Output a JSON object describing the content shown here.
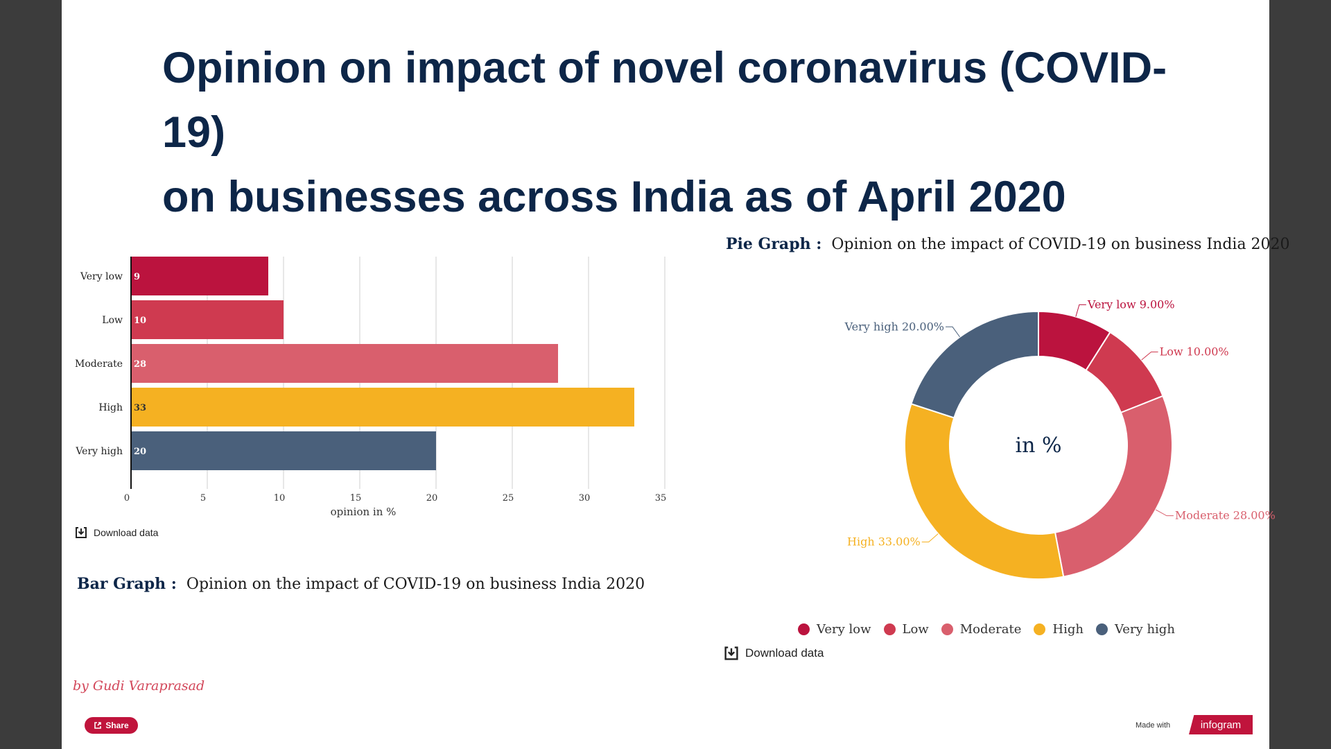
{
  "title": {
    "line1": "Opinion on impact of novel coronavirus (COVID-19)",
    "line2": "on businesses across India as of April 2020"
  },
  "bar_section": {
    "caption_bold": "Bar Graph :",
    "caption_text": "Opinion on the impact of COVID-19 on business India 2020",
    "download_label": "Download data"
  },
  "pie_section": {
    "caption_bold": "Pie Graph :",
    "caption_text": "Opinion on the impact of COVID-19 on business India 2020",
    "center_label": "in %",
    "download_label": "Download data"
  },
  "byline": "by Gudi Varaprasad",
  "footer": {
    "share_label": "Share",
    "made_with_label": "Made with",
    "brand_label": "infogram"
  },
  "colors": {
    "very_low": "#bb133e",
    "low": "#cf3a50",
    "moderate": "#d95f6d",
    "high": "#f5b122",
    "very_high": "#4a607b",
    "title": "#0d2648"
  },
  "chart_data": [
    {
      "type": "bar",
      "orientation": "horizontal",
      "categories": [
        "Very low",
        "Low",
        "Moderate",
        "High",
        "Very high"
      ],
      "values": [
        9,
        10,
        28,
        33,
        20
      ],
      "colors": [
        "#bb133e",
        "#cf3a50",
        "#d95f6d",
        "#f5b122",
        "#4a607b"
      ],
      "xlabel": "opinion in %",
      "ylabel": "",
      "xlim": [
        0,
        35
      ],
      "xticks": [
        0,
        5,
        10,
        15,
        20,
        25,
        30,
        35
      ],
      "grid": true,
      "data_labels": [
        "9",
        "10",
        "28",
        "33",
        "20"
      ]
    },
    {
      "type": "pie",
      "donut": true,
      "center_text": "in %",
      "labels": [
        "Very low",
        "Low",
        "Moderate",
        "High",
        "Very high"
      ],
      "values": [
        9,
        10,
        28,
        33,
        20
      ],
      "data_labels": [
        "Very low 9.00%",
        "Low 10.00%",
        "Moderate 28.00%",
        "High 33.00%",
        "Very high 20.00%"
      ],
      "colors": [
        "#bb133e",
        "#cf3a50",
        "#d95f6d",
        "#f5b122",
        "#4a607b"
      ],
      "legend": "bottom"
    }
  ]
}
